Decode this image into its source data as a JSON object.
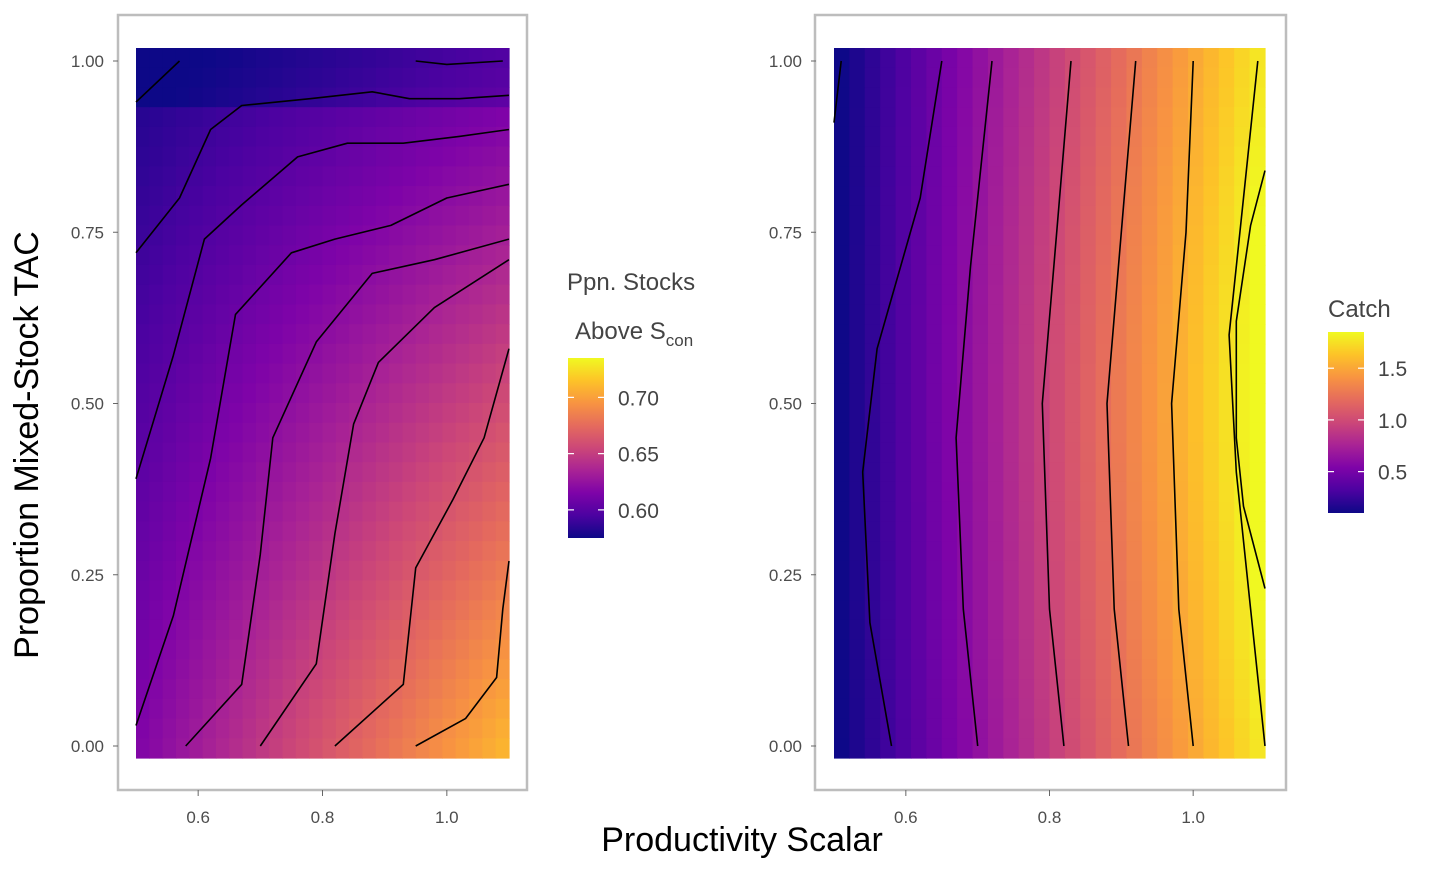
{
  "chart_data": [
    {
      "type": "heatmap",
      "panel": "left",
      "xlabel": "Productivity Scalar",
      "ylabel": "Proportion Mixed-Stock TAC",
      "xlim": [
        0.5,
        1.1
      ],
      "ylim": [
        0,
        1
      ],
      "x_ticks": [
        "0.6",
        "0.8",
        "1.0"
      ],
      "y_ticks": [
        "0.00",
        "0.25",
        "0.50",
        "0.75",
        "1.00"
      ],
      "x_tick_values": [
        0.6,
        0.8,
        1.0
      ],
      "y_tick_values": [
        0,
        0.25,
        0.5,
        0.75,
        1.0
      ],
      "legend": {
        "title_line1": "Ppn. Stocks",
        "title_line2_main": "Above S",
        "title_line2_sub": "con",
        "labels": [
          "0.70",
          "0.65",
          "0.60"
        ],
        "label_values": [
          0.7,
          0.65,
          0.6
        ],
        "range": [
          0.575,
          0.735
        ],
        "placement": "right"
      },
      "colormap": "plasma",
      "grid": false,
      "corner_values": {
        "x0.5_y0": 0.64,
        "x1.1_y0": 0.735,
        "x0.5_y1": 0.58,
        "x1.1_y1": 0.61
      },
      "contour_levels": [
        0.6,
        0.62,
        0.64,
        0.66,
        0.68,
        0.7,
        0.72
      ],
      "contours": [
        [
          [
            0.5,
            0.94
          ],
          [
            0.57,
            1.0
          ]
        ],
        [
          [
            0.95,
            1.0
          ],
          [
            1.0,
            0.995
          ],
          [
            1.09,
            1.0
          ]
        ],
        [
          [
            0.5,
            0.72
          ],
          [
            0.57,
            0.8
          ],
          [
            0.62,
            0.9
          ],
          [
            0.67,
            0.935
          ],
          [
            0.78,
            0.945
          ],
          [
            0.88,
            0.955
          ],
          [
            0.94,
            0.945
          ],
          [
            1.02,
            0.945
          ],
          [
            1.1,
            0.95
          ]
        ],
        [
          [
            0.5,
            0.39
          ],
          [
            0.56,
            0.57
          ],
          [
            0.61,
            0.74
          ],
          [
            0.67,
            0.79
          ],
          [
            0.76,
            0.86
          ],
          [
            0.84,
            0.88
          ],
          [
            0.93,
            0.88
          ],
          [
            1.02,
            0.89
          ],
          [
            1.1,
            0.9
          ]
        ],
        [
          [
            0.5,
            0.03
          ],
          [
            0.56,
            0.19
          ],
          [
            0.62,
            0.42
          ],
          [
            0.66,
            0.63
          ],
          [
            0.75,
            0.72
          ],
          [
            0.82,
            0.74
          ],
          [
            0.91,
            0.76
          ],
          [
            1.0,
            0.8
          ],
          [
            1.1,
            0.82
          ]
        ],
        [
          [
            0.58,
            0.0
          ],
          [
            0.67,
            0.09
          ],
          [
            0.7,
            0.28
          ],
          [
            0.72,
            0.45
          ],
          [
            0.79,
            0.59
          ],
          [
            0.88,
            0.69
          ],
          [
            0.98,
            0.71
          ],
          [
            1.1,
            0.74
          ]
        ],
        [
          [
            0.7,
            0.0
          ],
          [
            0.79,
            0.12
          ],
          [
            0.82,
            0.31
          ],
          [
            0.85,
            0.47
          ],
          [
            0.89,
            0.56
          ],
          [
            0.98,
            0.64
          ],
          [
            1.1,
            0.71
          ]
        ],
        [
          [
            0.82,
            0.0
          ],
          [
            0.93,
            0.09
          ],
          [
            0.95,
            0.26
          ],
          [
            1.01,
            0.36
          ],
          [
            1.06,
            0.45
          ],
          [
            1.1,
            0.58
          ]
        ],
        [
          [
            0.95,
            0.0
          ],
          [
            1.03,
            0.04
          ],
          [
            1.08,
            0.1
          ],
          [
            1.09,
            0.2
          ],
          [
            1.1,
            0.27
          ]
        ]
      ]
    },
    {
      "type": "heatmap",
      "panel": "right",
      "xlabel": "Productivity Scalar",
      "ylabel": "Proportion Mixed-Stock TAC",
      "xlim": [
        0.5,
        1.1
      ],
      "ylim": [
        0,
        1
      ],
      "x_ticks": [
        "0.6",
        "0.8",
        "1.0"
      ],
      "y_ticks": [
        "0.00",
        "0.25",
        "0.50",
        "0.75",
        "1.00"
      ],
      "x_tick_values": [
        0.6,
        0.8,
        1.0
      ],
      "y_tick_values": [
        0,
        0.25,
        0.5,
        0.75,
        1.0
      ],
      "legend": {
        "title": "Catch",
        "labels": [
          "1.5",
          "1.0",
          "0.5"
        ],
        "label_values": [
          1.5,
          1.0,
          0.5
        ],
        "range": [
          0.1,
          1.85
        ],
        "placement": "right"
      },
      "colormap": "plasma",
      "grid": false,
      "corner_values": {
        "x0.5_y0": 0.1,
        "x1.1_y0": 1.7,
        "x0.5_y1": 0.08,
        "x1.1_y1": 1.75
      },
      "contour_levels": [
        0.1,
        0.3,
        0.5,
        0.7,
        0.9,
        1.1,
        1.3,
        1.5,
        1.7
      ],
      "contours": [
        [
          [
            0.5,
            0.91
          ],
          [
            0.51,
            1.0
          ]
        ],
        [
          [
            0.58,
            0.0
          ],
          [
            0.55,
            0.18
          ],
          [
            0.54,
            0.4
          ],
          [
            0.56,
            0.58
          ],
          [
            0.62,
            0.8
          ],
          [
            0.65,
            1.0
          ]
        ],
        [
          [
            0.7,
            0.0
          ],
          [
            0.68,
            0.2
          ],
          [
            0.67,
            0.45
          ],
          [
            0.69,
            0.7
          ],
          [
            0.72,
            1.0
          ]
        ],
        [
          [
            0.82,
            0.0
          ],
          [
            0.8,
            0.2
          ],
          [
            0.79,
            0.5
          ],
          [
            0.81,
            0.75
          ],
          [
            0.83,
            1.0
          ]
        ],
        [
          [
            0.91,
            0.0
          ],
          [
            0.89,
            0.2
          ],
          [
            0.88,
            0.5
          ],
          [
            0.9,
            0.75
          ],
          [
            0.92,
            1.0
          ]
        ],
        [
          [
            1.0,
            0.0
          ],
          [
            0.98,
            0.2
          ],
          [
            0.97,
            0.5
          ],
          [
            0.99,
            0.75
          ],
          [
            1.0,
            1.0
          ]
        ],
        [
          [
            1.1,
            0.0
          ],
          [
            1.08,
            0.2
          ],
          [
            1.06,
            0.4
          ],
          [
            1.05,
            0.6
          ],
          [
            1.07,
            0.8
          ],
          [
            1.09,
            1.0
          ]
        ],
        [
          [
            1.1,
            0.23
          ],
          [
            1.07,
            0.35
          ],
          [
            1.06,
            0.45
          ],
          [
            1.06,
            0.62
          ],
          [
            1.08,
            0.76
          ],
          [
            1.1,
            0.84
          ]
        ]
      ]
    }
  ],
  "figure": {
    "x_axis_title": "Productivity Scalar",
    "y_axis_title": "Proportion Mixed-Stock TAC"
  }
}
